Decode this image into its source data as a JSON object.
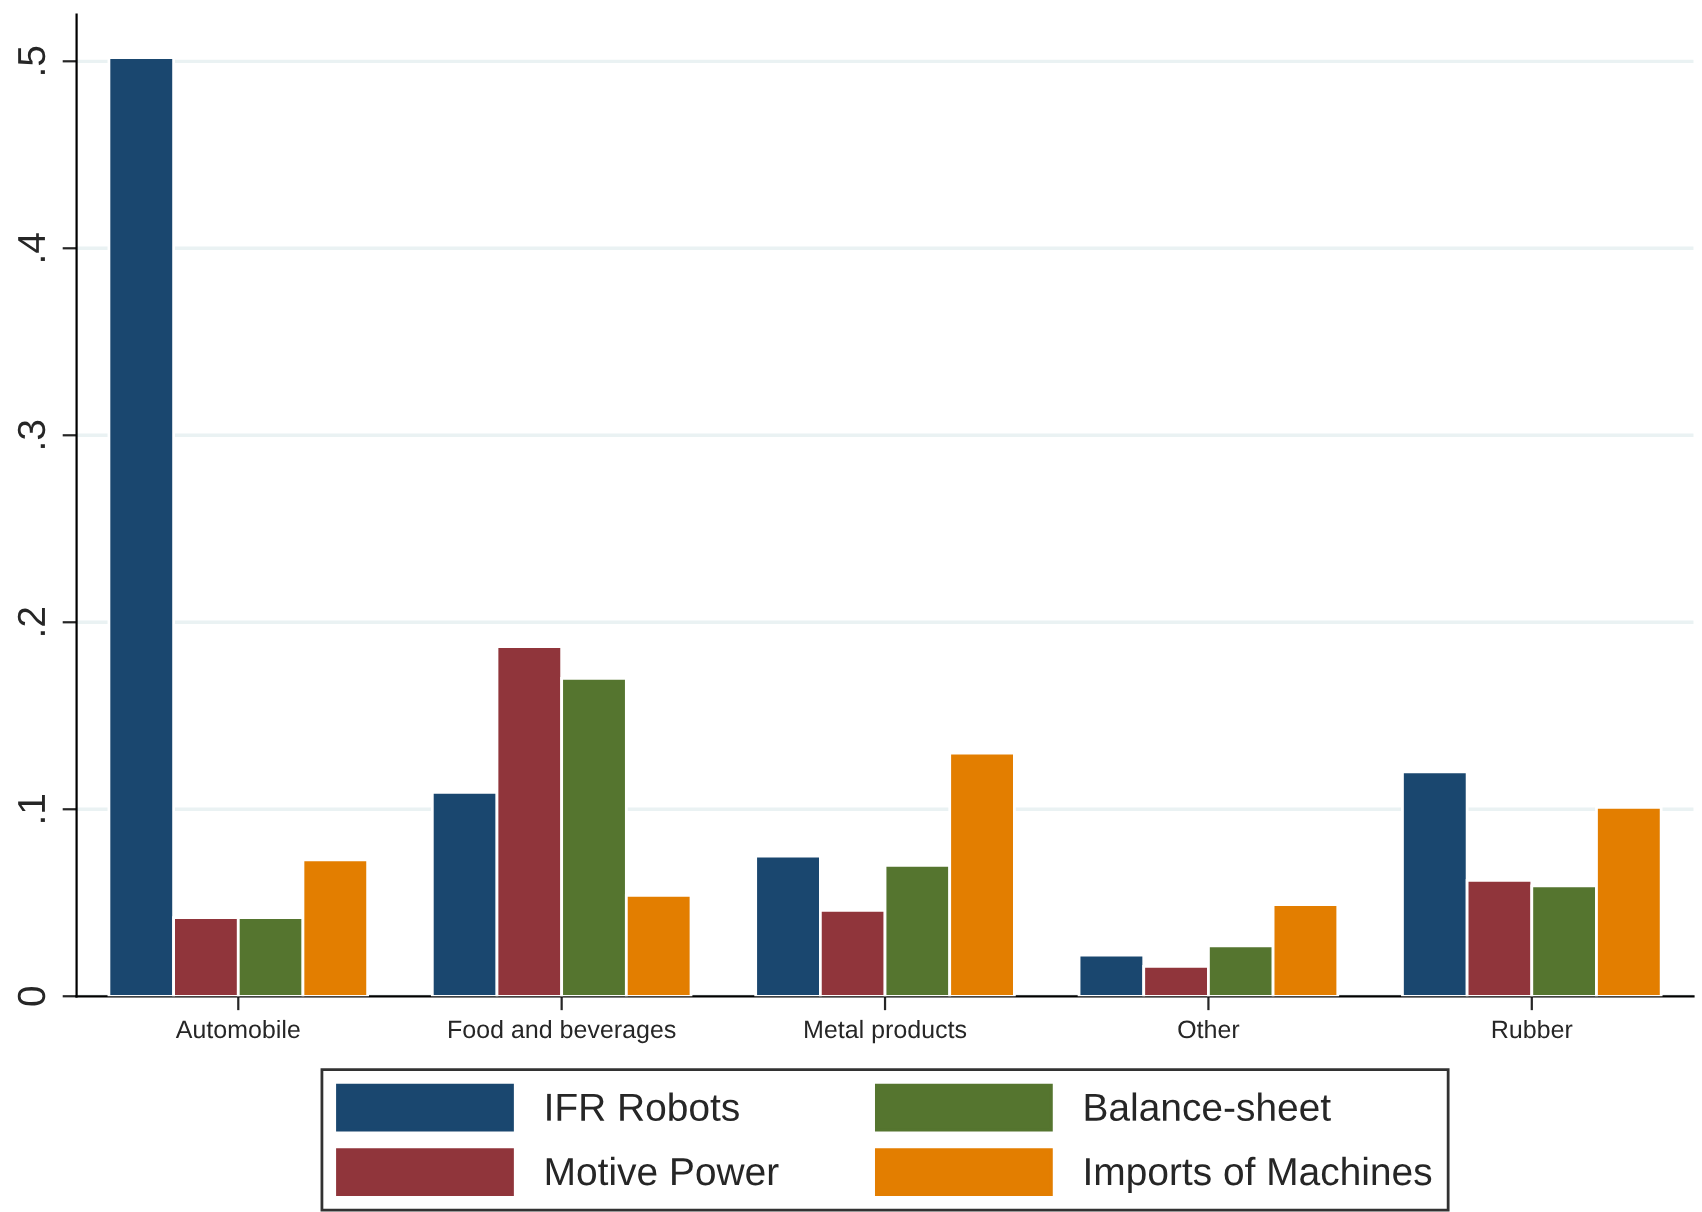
{
  "chart_data": {
    "type": "bar",
    "categories": [
      "Automobile",
      "Food and beverages",
      "Metal products",
      "Other",
      "Rubber"
    ],
    "series": [
      {
        "name": "IFR Robots",
        "color": "#1a476f",
        "values": [
          0.502,
          0.109,
          0.075,
          0.022,
          0.12
        ]
      },
      {
        "name": "Motive Power",
        "color": "#90353b",
        "values": [
          0.042,
          0.187,
          0.046,
          0.016,
          0.062
        ]
      },
      {
        "name": "Balance-sheet",
        "color": "#55752f",
        "values": [
          0.042,
          0.17,
          0.07,
          0.027,
          0.059
        ]
      },
      {
        "name": "Imports of Machines",
        "color": "#e37e00",
        "values": [
          0.073,
          0.054,
          0.13,
          0.049,
          0.101
        ]
      }
    ],
    "ylim": [
      0,
      0.525
    ],
    "yticks": [
      {
        "value": 0,
        "label": "0"
      },
      {
        "value": 0.1,
        "label": ".1"
      },
      {
        "value": 0.2,
        "label": ".2"
      },
      {
        "value": 0.3,
        "label": ".3"
      },
      {
        "value": 0.4,
        "label": ".4"
      },
      {
        "value": 0.5,
        "label": ".5"
      }
    ],
    "grid": "y",
    "legend": "bottom"
  }
}
